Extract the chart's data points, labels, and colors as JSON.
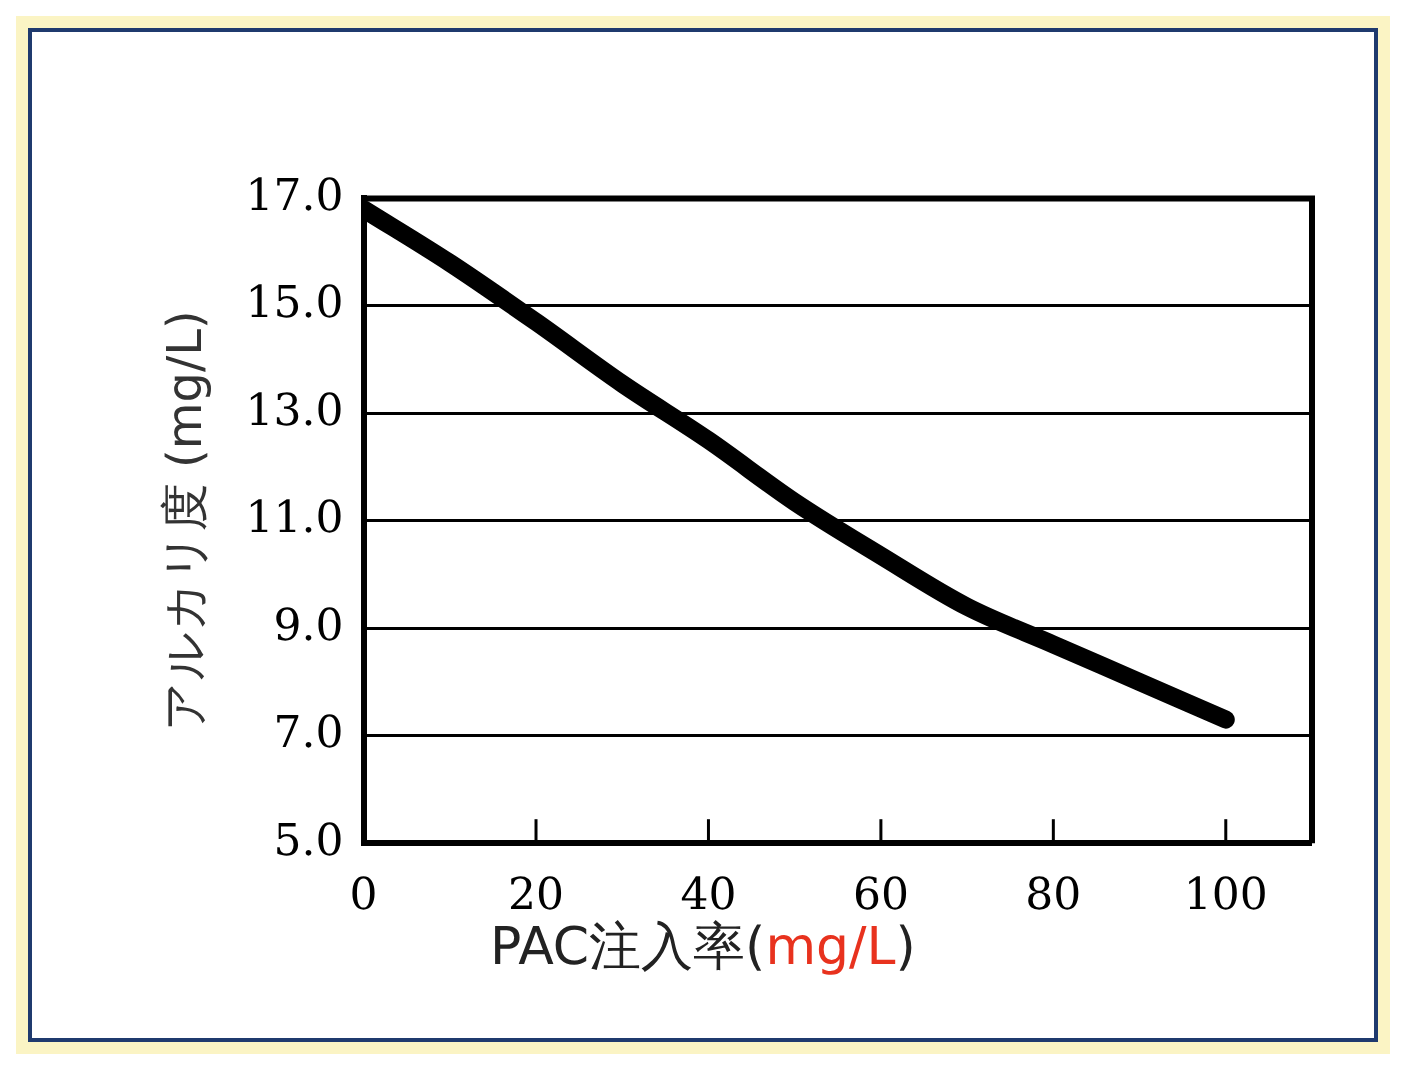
{
  "chart_data": {
    "type": "line",
    "xlabel": "PAC注入率(mg/L)",
    "ylabel": "アルカリ度 (mg/L)",
    "x": [
      0,
      10,
      20,
      30,
      40,
      50,
      60,
      70,
      80,
      90,
      100
    ],
    "series": [
      {
        "color": "#000000",
        "values": [
          16.8,
          15.8,
          14.7,
          13.55,
          12.5,
          11.35,
          10.35,
          9.4,
          8.7,
          8.0,
          7.3
        ]
      }
    ],
    "xlim": [
      0,
      110
    ],
    "xticks": [
      0,
      20,
      40,
      60,
      80,
      100
    ],
    "ylim": [
      5,
      17
    ],
    "yticks": [
      {
        "value": 5,
        "label": "5.0"
      },
      {
        "value": 7,
        "label": "7.0"
      },
      {
        "value": 9,
        "label": "9.0"
      },
      {
        "value": 11,
        "label": "11.0"
      },
      {
        "value": 13,
        "label": "13.0"
      },
      {
        "value": 15,
        "label": "15.0"
      },
      {
        "value": 17,
        "label": "17.0"
      }
    ],
    "grid": "y",
    "legend": false,
    "marker": "none",
    "line_style": "solid"
  }
}
